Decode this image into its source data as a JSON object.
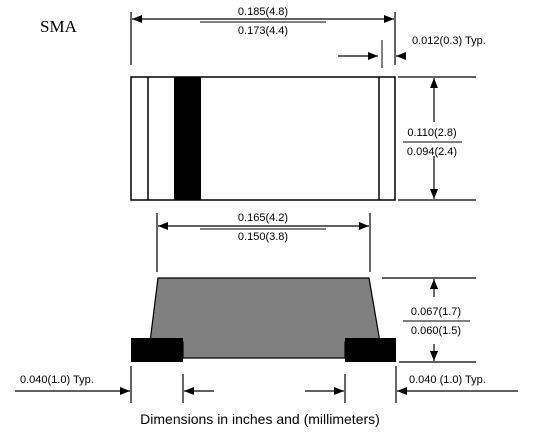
{
  "package_name": "SMA",
  "top_view": {
    "body_length": {
      "max": "0.185(4.8)",
      "min": "0.173(4.4)"
    },
    "band_width": "0.012(0.3) Typ."
  },
  "side_view": {
    "body_height": {
      "max": "0.110(2.8)",
      "min": "0.094(2.4)"
    }
  },
  "bottom_view": {
    "inner_length": {
      "max": "0.165(4.2)",
      "min": "0.150(3.8)"
    },
    "thickness": {
      "max": "0.067(1.7)",
      "min": "0.060(1.5)"
    },
    "lead_left": "0.040(1.0) Typ.",
    "lead_right": "0.040 (1.0) Typ."
  },
  "caption": "Dimensions in inches and (millimeters)",
  "colors": {
    "ink": "#000000",
    "body_fill": "#808080",
    "background": "#ffffff"
  }
}
